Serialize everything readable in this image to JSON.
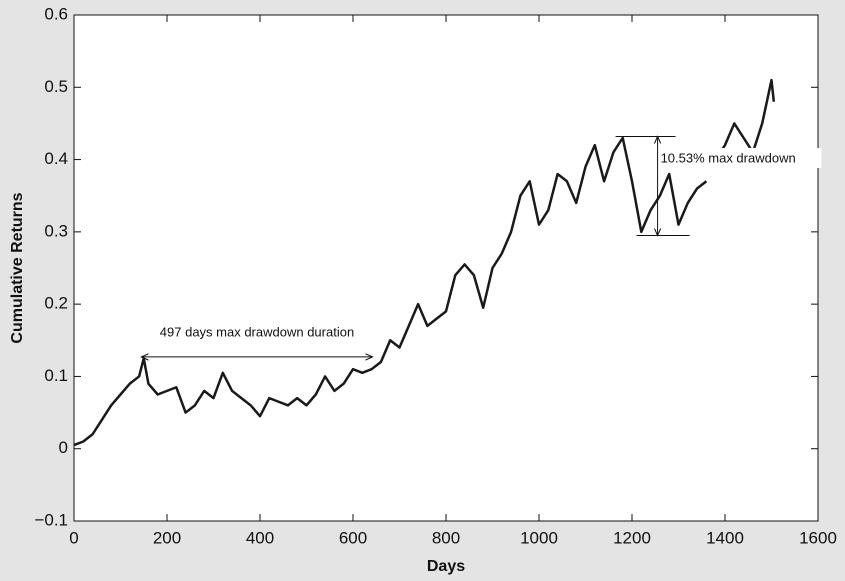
{
  "chart_data": {
    "type": "line",
    "xlabel": "Days",
    "ylabel": "Cumulative Returns",
    "x": [
      0,
      20,
      40,
      60,
      80,
      100,
      120,
      140,
      150,
      160,
      180,
      200,
      220,
      240,
      260,
      280,
      300,
      320,
      340,
      360,
      380,
      400,
      420,
      440,
      460,
      480,
      500,
      520,
      540,
      560,
      580,
      600,
      620,
      640,
      660,
      680,
      700,
      720,
      740,
      760,
      780,
      800,
      820,
      840,
      860,
      880,
      900,
      920,
      940,
      960,
      980,
      1000,
      1020,
      1040,
      1060,
      1080,
      1100,
      1120,
      1140,
      1160,
      1180,
      1200,
      1220,
      1240,
      1260,
      1280,
      1300,
      1320,
      1340,
      1360,
      1375,
      1390,
      1400,
      1420,
      1440,
      1460,
      1480,
      1500,
      1505
    ],
    "series": [
      {
        "color": "#1a1a1a",
        "values": [
          0.005,
          0.01,
          0.02,
          0.04,
          0.06,
          0.075,
          0.09,
          0.1,
          0.125,
          0.09,
          0.075,
          0.08,
          0.085,
          0.05,
          0.06,
          0.08,
          0.07,
          0.105,
          0.08,
          0.07,
          0.06,
          0.045,
          0.07,
          0.065,
          0.06,
          0.07,
          0.06,
          0.075,
          0.1,
          0.08,
          0.09,
          0.11,
          0.105,
          0.11,
          0.12,
          0.15,
          0.14,
          0.17,
          0.2,
          0.17,
          0.18,
          0.19,
          0.24,
          0.255,
          0.24,
          0.195,
          0.25,
          0.27,
          0.3,
          0.35,
          0.37,
          0.31,
          0.33,
          0.38,
          0.37,
          0.34,
          0.39,
          0.42,
          0.37,
          0.41,
          0.43,
          0.37,
          0.3,
          0.33,
          0.35,
          0.38,
          0.31,
          0.34,
          0.36,
          0.37,
          null,
          0.41,
          0.42,
          0.45,
          0.43,
          0.41,
          0.45,
          0.51,
          0.48
        ]
      }
    ],
    "xlim": [
      0,
      1600
    ],
    "xticks": [
      0,
      200,
      400,
      600,
      800,
      1000,
      1200,
      1400,
      1600
    ],
    "ylim": [
      -0.1,
      0.6
    ],
    "yticks": [
      {
        "value": -0.1,
        "label": "−0.1"
      },
      0,
      0.1,
      0.2,
      0.3,
      0.4,
      0.5,
      0.6
    ],
    "annotations": [
      {
        "text": "497 days max drawdown duration",
        "x": [
          145,
          642
        ],
        "y": 0.127
      },
      {
        "text": "10.53% max drawdown",
        "x": 1255,
        "y": [
          0.432,
          0.295
        ]
      }
    ]
  }
}
